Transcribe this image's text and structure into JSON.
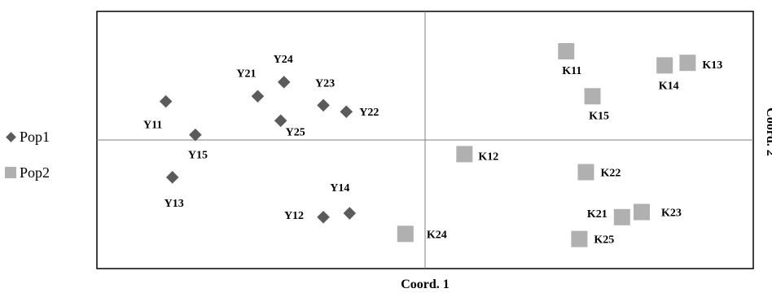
{
  "chart_data": {
    "type": "scatter",
    "xlabel": "Coord. 1",
    "ylabel": "Coord. 2",
    "xlim": [
      -1,
      1
    ],
    "ylim": [
      -1,
      1
    ],
    "series": [
      {
        "name": "Pop1",
        "marker": "diamond",
        "color": "#5b5b5b",
        "points": [
          {
            "label": "Y11",
            "x": -0.79,
            "y": 0.3
          },
          {
            "label": "Y12",
            "x": -0.31,
            "y": -0.6
          },
          {
            "label": "Y13",
            "x": -0.77,
            "y": -0.29
          },
          {
            "label": "Y14",
            "x": -0.23,
            "y": -0.57
          },
          {
            "label": "Y15",
            "x": -0.7,
            "y": 0.04
          },
          {
            "label": "Y21",
            "x": -0.51,
            "y": 0.34
          },
          {
            "label": "Y22",
            "x": -0.24,
            "y": 0.22
          },
          {
            "label": "Y23",
            "x": -0.31,
            "y": 0.27
          },
          {
            "label": "Y24",
            "x": -0.43,
            "y": 0.45
          },
          {
            "label": "Y25",
            "x": -0.44,
            "y": 0.15
          }
        ]
      },
      {
        "name": "Pop2",
        "marker": "square",
        "color": "#b0b0b0",
        "points": [
          {
            "label": "K11",
            "x": 0.43,
            "y": 0.69
          },
          {
            "label": "K12",
            "x": 0.12,
            "y": -0.11
          },
          {
            "label": "K13",
            "x": 0.8,
            "y": 0.6
          },
          {
            "label": "K14",
            "x": 0.73,
            "y": 0.58
          },
          {
            "label": "K15",
            "x": 0.51,
            "y": 0.34
          },
          {
            "label": "K21",
            "x": 0.6,
            "y": -0.6
          },
          {
            "label": "K22",
            "x": 0.49,
            "y": -0.25
          },
          {
            "label": "K23",
            "x": 0.66,
            "y": -0.56
          },
          {
            "label": "K24",
            "x": -0.06,
            "y": -0.73
          },
          {
            "label": "K25",
            "x": 0.47,
            "y": -0.77
          }
        ]
      }
    ],
    "grid": false,
    "legend": "left"
  }
}
